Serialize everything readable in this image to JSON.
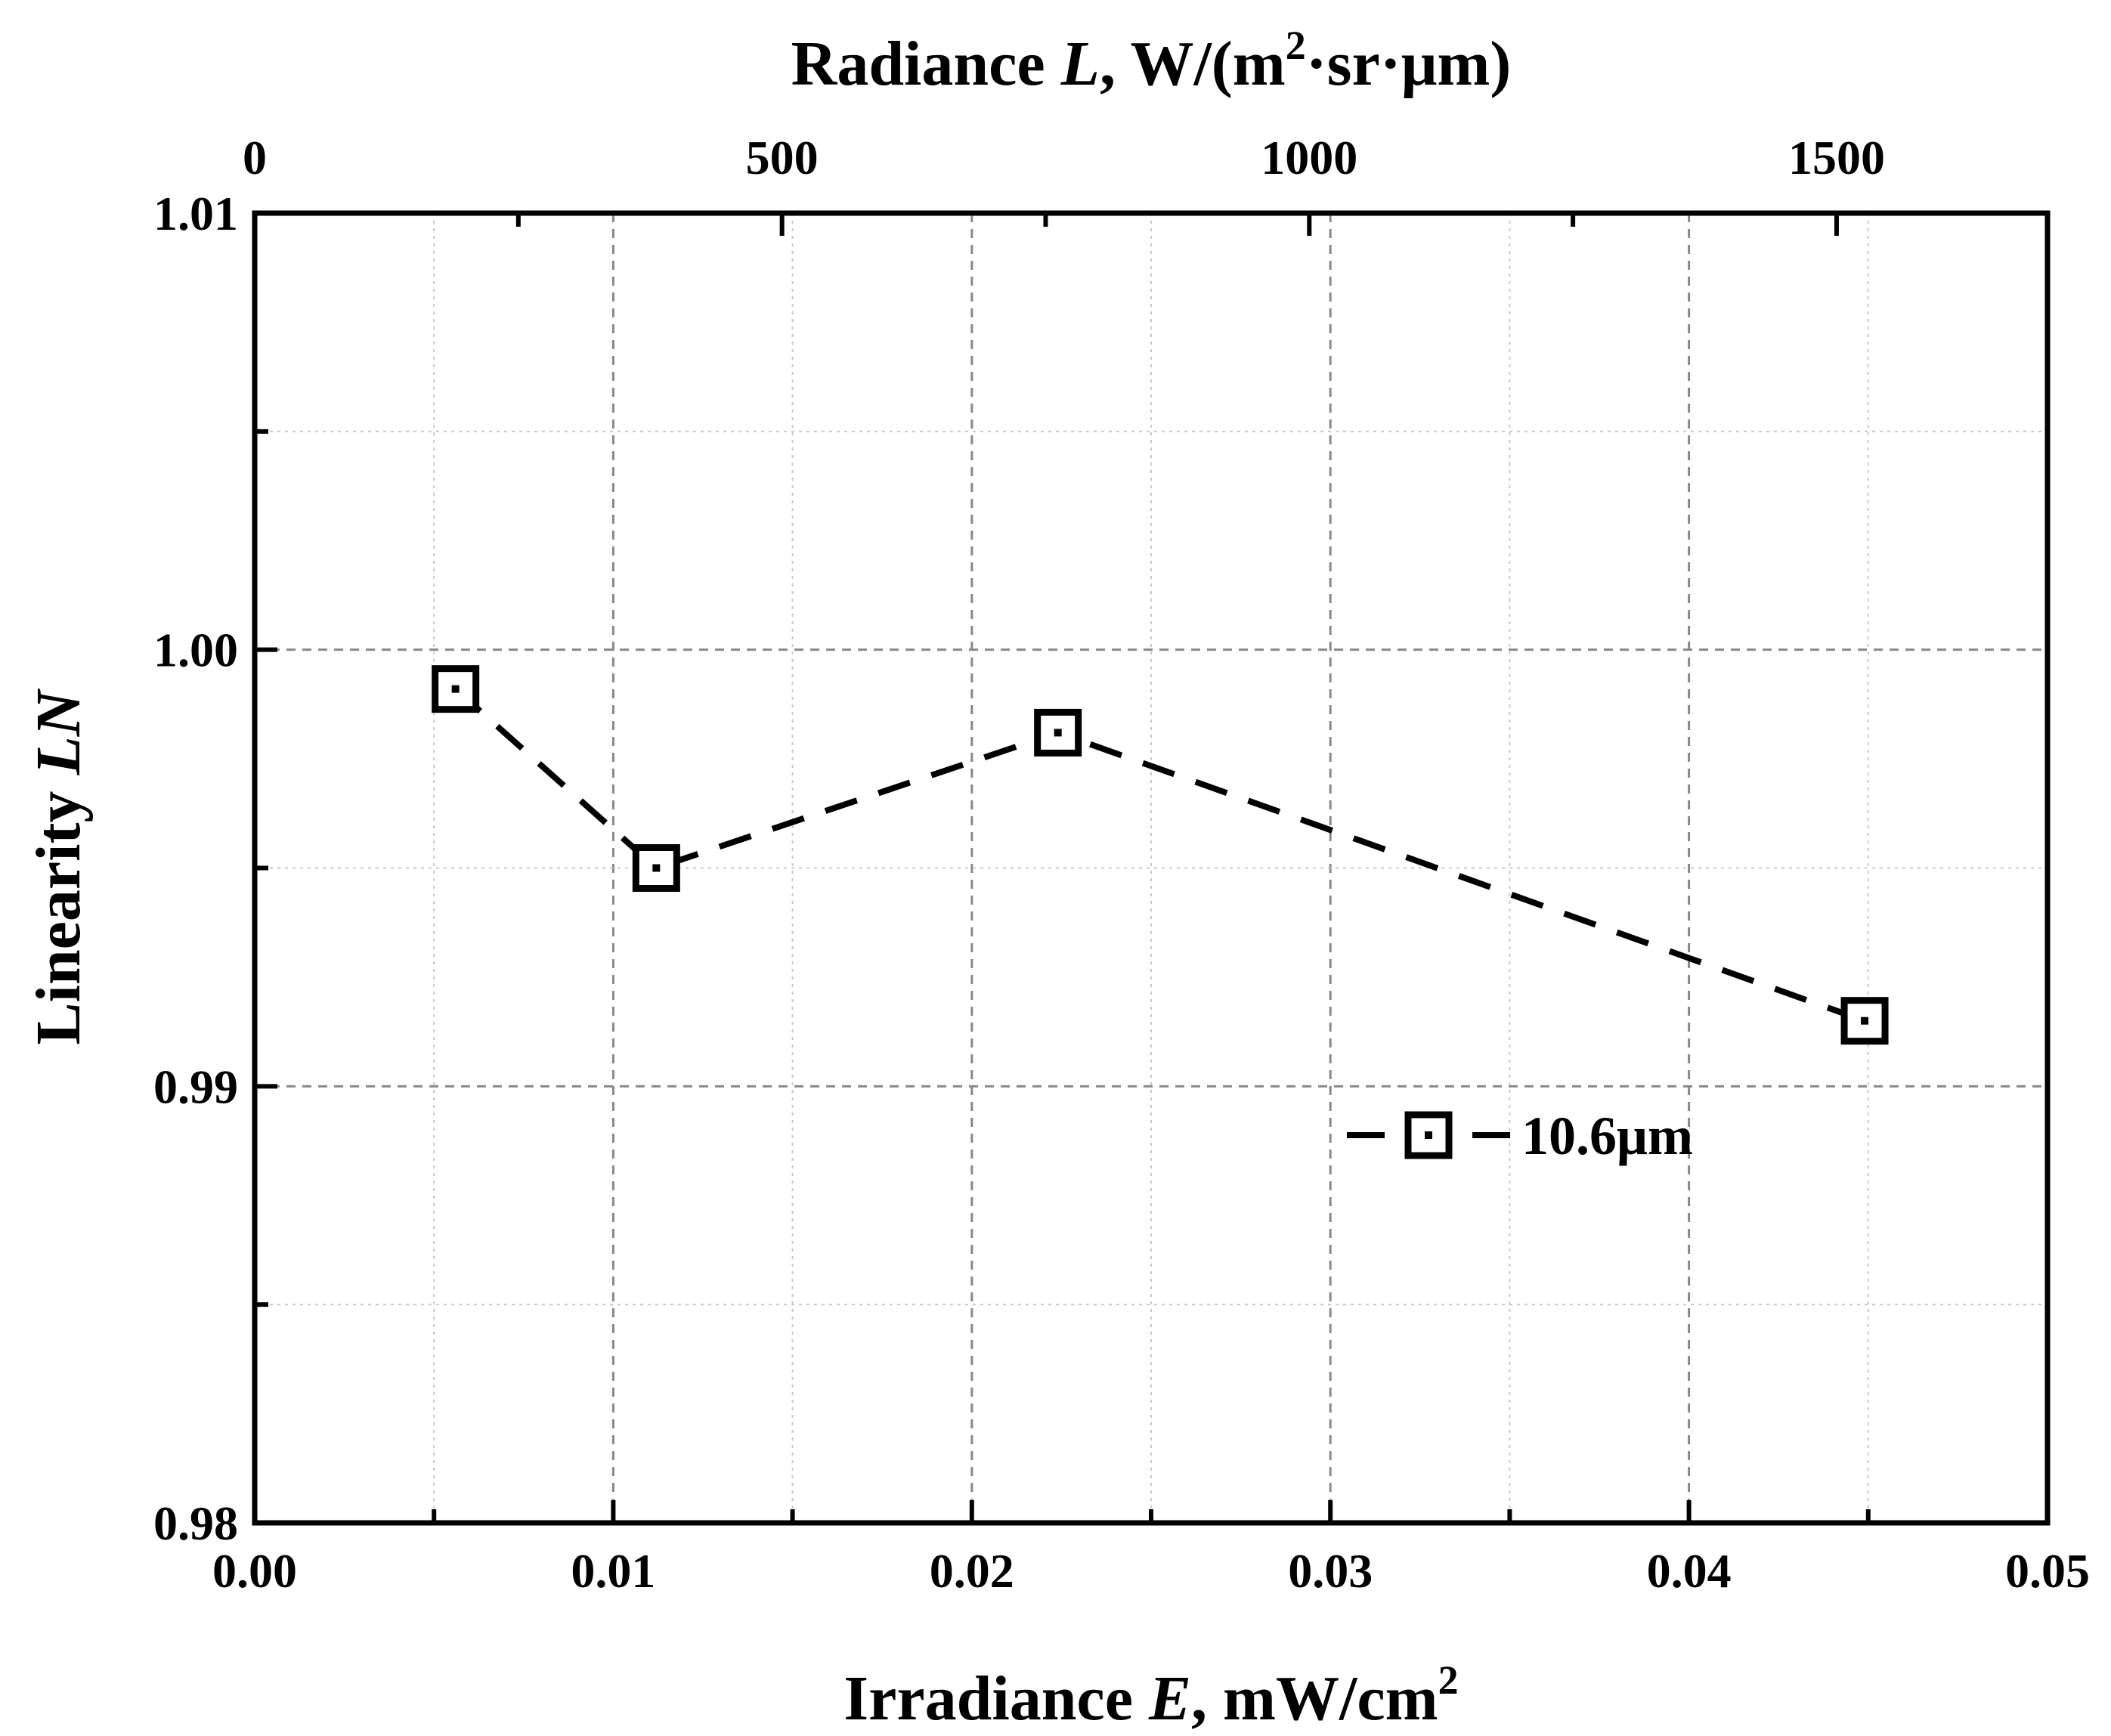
{
  "chart_data": {
    "type": "line",
    "x": [
      0.0056,
      0.0112,
      0.0224,
      0.0449
    ],
    "series": [
      {
        "name": "10.6μm",
        "values": [
          0.9991,
          0.995,
          0.9981,
          0.9915
        ],
        "marker": "square-with-dot",
        "line_style": "dashed"
      }
    ],
    "xlabel": {
      "prefix": "Irradiance ",
      "var": "E",
      "suffix": ", mW/cm",
      "sup": "2"
    },
    "ylabel": {
      "prefix": "Linearity ",
      "var": "LN"
    },
    "top_xlabel": {
      "prefix": "Radiance ",
      "var": "L",
      "suffix": ", W/(m",
      "sup": "2",
      "suffix2": "·sr·μm)"
    },
    "xlim": [
      0.0,
      0.05
    ],
    "ylim": [
      0.98,
      1.01
    ],
    "top_xlim": [
      0,
      1700
    ],
    "x_ticks": [
      0.0,
      0.01,
      0.02,
      0.03,
      0.04,
      0.05
    ],
    "x_tick_labels": [
      "0.00",
      "0.01",
      "0.02",
      "0.03",
      "0.04",
      "0.05"
    ],
    "y_ticks": [
      0.98,
      0.99,
      1.0,
      1.01
    ],
    "y_tick_labels": [
      "0.98",
      "0.99",
      "1.00",
      "1.01"
    ],
    "top_x_ticks": [
      0,
      500,
      1000,
      1500
    ],
    "top_x_tick_labels": [
      "0",
      "500",
      "1000",
      "1500"
    ],
    "grid": true,
    "legend": {
      "placement": "lower-right",
      "entries": [
        "10.6μm"
      ]
    },
    "colors": {
      "series": "#000000",
      "major_grid": "#888888",
      "minor_grid": "#c8c8c8"
    }
  }
}
